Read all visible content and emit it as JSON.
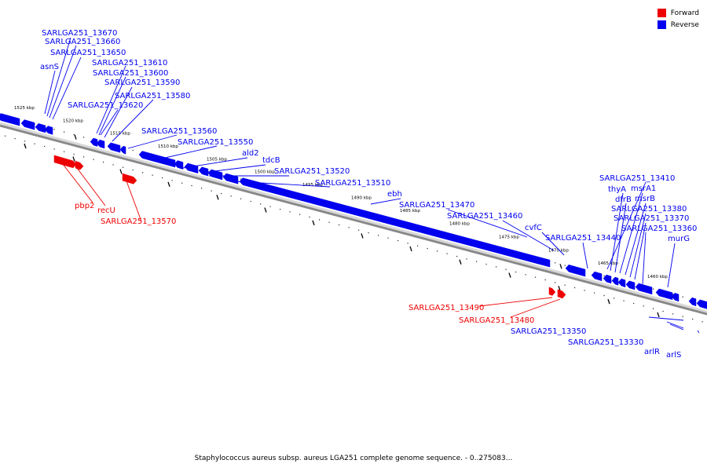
{
  "legend": {
    "forward": {
      "label": "Forward",
      "color": "#ee0000"
    },
    "reverse": {
      "label": "Reverse",
      "color": "#0000ee"
    }
  },
  "caption": "Staphylococcus aureus subsp. aureus LGA251 complete genome sequence. - 0..275083...",
  "ticks": [
    "1525 kbp",
    "1520 kbp",
    "1515 kbp",
    "1510 kbp",
    "1505 kbp",
    "1500 kbp",
    "1495 kbp",
    "1490 kbp",
    "1485 kbp",
    "1480 kbp",
    "1475 kbp",
    "1470 kbp",
    "1465 kbp",
    "1460 kbp"
  ],
  "reverse_labels": [
    "SARLGA251_13670",
    "SARLGA251_13660",
    "SARLGA251_13650",
    "asnS",
    "SARLGA251_13610",
    "SARLGA251_13600",
    "SARLGA251_13590",
    "SARLGA251_13580",
    "SARLGA251_13620",
    "SARLGA251_13560",
    "SARLGA251_13550",
    "ald2",
    "tdcB",
    "SARLGA251_13520",
    "SARLGA251_13510",
    "ebh",
    "SARLGA251_13470",
    "SARLGA251_13460",
    "cvfC",
    "SARLGA251_13440",
    "SARLGA251_13410",
    "thyA",
    "msrA1",
    "dfrB",
    "msrB",
    "SARLGA251_13380",
    "SARLGA251_13370",
    "SARLGA251_13360",
    "murG",
    "SARLGA251_13350",
    "SARLGA251_13330",
    "arlR",
    "arlS"
  ],
  "forward_labels": [
    "pbp2",
    "recU",
    "SARLGA251_13570",
    "SARLGA251_13490",
    "SARLGA251_13480"
  ]
}
